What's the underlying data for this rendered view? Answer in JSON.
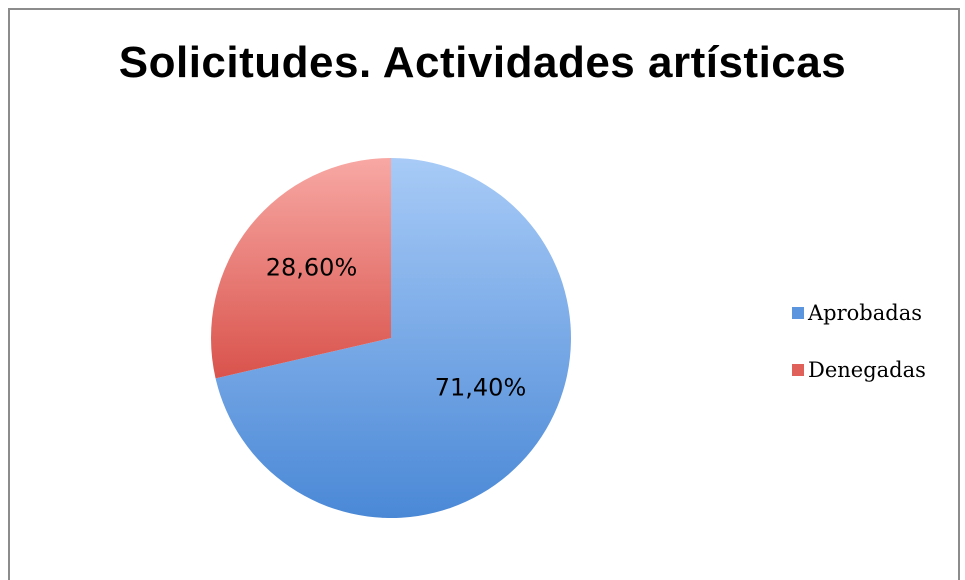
{
  "colors": {
    "aprobadas_light": "#a8cbf7",
    "aprobadas_dark": "#4a88d6",
    "denegadas_light": "#f8a8a4",
    "denegadas_dark": "#d9534c"
  },
  "chart_data": {
    "type": "pie",
    "title": "Solicitudes. Actividades artísticas",
    "legend_placement": "right",
    "slices": [
      {
        "name": "Aprobadas",
        "value": 71.4,
        "label": "71,40%",
        "color": "#6aa0e6"
      },
      {
        "name": "Denegadas",
        "value": 28.6,
        "label": "28,60%",
        "color": "#e56b64"
      }
    ]
  }
}
